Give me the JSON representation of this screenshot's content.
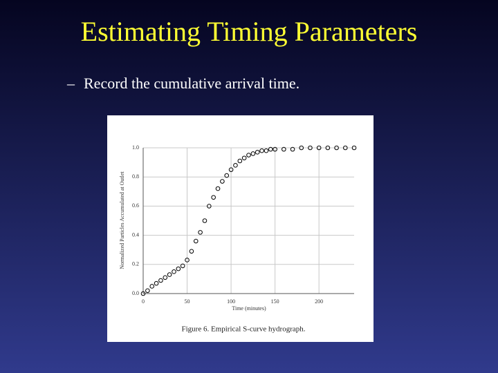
{
  "slide": {
    "title": "Estimating Timing Parameters",
    "bullet": "Record the cumulative arrival time."
  },
  "chart_data": {
    "type": "scatter",
    "caption": "Figure 6. Empirical S-curve hydrograph.",
    "x_label": "Time (minutes)",
    "y_label": "Normalized Particles Accumulated at Outlet",
    "series": [
      {
        "name": "Particles",
        "color": "#000000",
        "x": [
          0,
          5,
          10,
          15,
          20,
          25,
          30,
          35,
          40,
          45,
          50,
          55,
          60,
          65,
          70,
          75,
          80,
          85,
          90,
          95,
          100,
          105,
          110,
          115,
          120,
          125,
          130,
          135,
          140,
          145,
          150,
          160,
          170,
          180,
          190,
          200,
          210,
          220,
          230,
          240
        ],
        "values": [
          0,
          0.02,
          0.05,
          0.07,
          0.09,
          0.11,
          0.13,
          0.15,
          0.17,
          0.19,
          0.23,
          0.29,
          0.36,
          0.42,
          0.5,
          0.6,
          0.66,
          0.72,
          0.77,
          0.81,
          0.85,
          0.88,
          0.91,
          0.93,
          0.95,
          0.96,
          0.97,
          0.98,
          0.98,
          0.99,
          0.99,
          0.99,
          0.99,
          1,
          1,
          1,
          1,
          1,
          1,
          1
        ]
      }
    ],
    "xlim": [
      0,
      240
    ],
    "xticks": [
      0,
      50,
      100,
      150,
      200
    ],
    "ylim": [
      0,
      1
    ],
    "yticks": [
      {
        "value": 0,
        "label": "0.0"
      },
      0.2,
      0.4,
      0.6,
      0.8,
      {
        "value": 1,
        "label": "1.0"
      }
    ],
    "grid": true
  }
}
